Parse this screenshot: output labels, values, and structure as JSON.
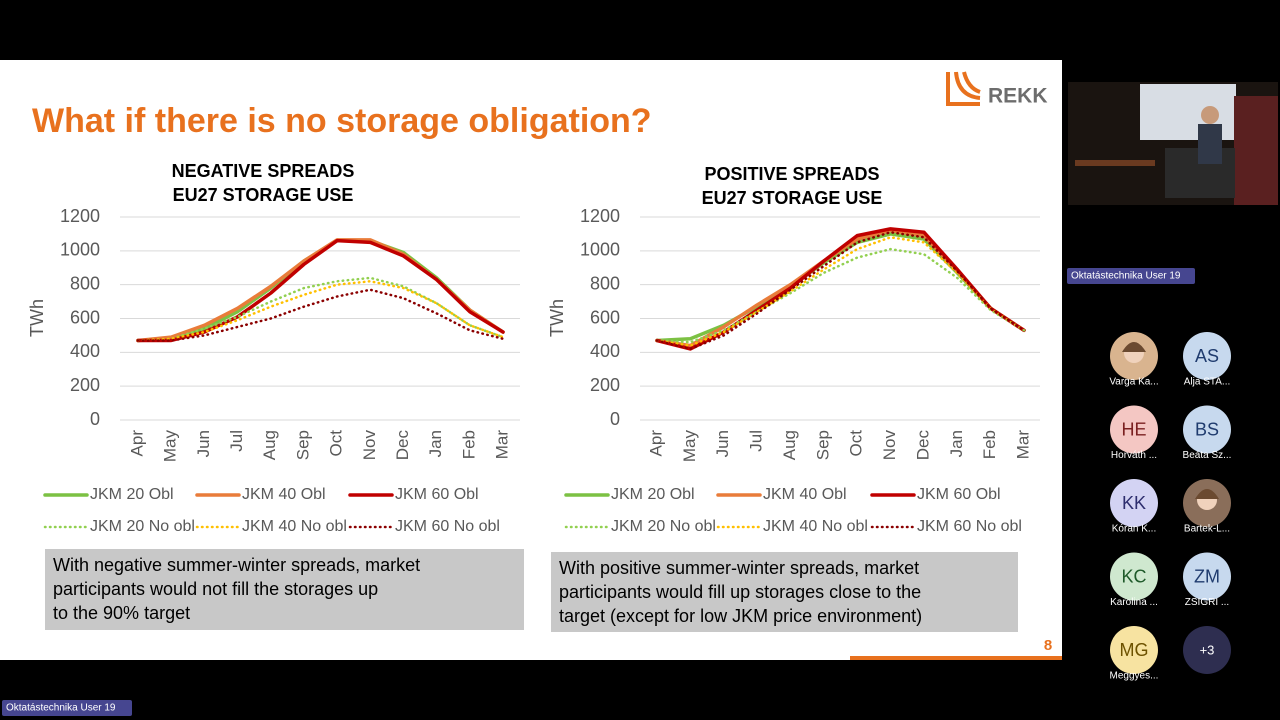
{
  "slide": {
    "title": "What if there is no storage obligation?",
    "logo": "REKK",
    "page_number": "8",
    "notes": [
      {
        "lines": [
          "With negative summer-winter spreads, market",
          "participants would not fill the storages up",
          "to the 90% target"
        ]
      },
      {
        "lines": [
          "With positive summer-winter spreads, market",
          "participants would fill up storages close to the",
          "target (except for low JKM price environment)"
        ]
      }
    ]
  },
  "chart_data": [
    {
      "type": "line",
      "title": "NEGATIVE SPREADS",
      "subtitle": "EU27 STORAGE USE",
      "y_label": "TWh",
      "categories": [
        "Apr",
        "May",
        "Jun",
        "Jul",
        "Aug",
        "Sep",
        "Oct",
        "Nov",
        "Dec",
        "Jan",
        "Feb",
        "Mar"
      ],
      "ylim": [
        0,
        1200
      ],
      "yticks": [
        0,
        200,
        400,
        600,
        800,
        1000,
        1200
      ],
      "grid": true,
      "legend": "bottom",
      "series": [
        {
          "name": "JKM 20 Obl",
          "color": "#7cc143",
          "style": "solid",
          "values": [
            470,
            480,
            540,
            640,
            780,
            940,
            1060,
            1060,
            990,
            840,
            650,
            520
          ]
        },
        {
          "name": "JKM 40 Obl",
          "color": "#e97c3a",
          "style": "solid",
          "values": [
            470,
            490,
            560,
            660,
            790,
            940,
            1065,
            1065,
            980,
            830,
            650,
            520
          ]
        },
        {
          "name": "JKM 60 Obl",
          "color": "#c00000",
          "style": "solid",
          "values": [
            470,
            470,
            520,
            610,
            750,
            920,
            1060,
            1050,
            970,
            830,
            640,
            520
          ]
        },
        {
          "name": "JKM 20 No obl",
          "color": "#92d050",
          "style": "dotted",
          "values": [
            470,
            480,
            540,
            610,
            700,
            780,
            820,
            840,
            790,
            690,
            560,
            490
          ]
        },
        {
          "name": "JKM 40 No obl",
          "color": "#ffc000",
          "style": "dotted",
          "values": [
            470,
            480,
            520,
            590,
            670,
            740,
            800,
            820,
            780,
            690,
            560,
            490
          ]
        },
        {
          "name": "JKM 60 No obl",
          "color": "#8b0000",
          "style": "dotted",
          "values": [
            470,
            470,
            500,
            550,
            600,
            670,
            730,
            770,
            720,
            630,
            530,
            480
          ]
        }
      ]
    },
    {
      "type": "line",
      "title": "POSITIVE SPREADS",
      "subtitle": "EU27 STORAGE USE",
      "y_label": "TWh",
      "categories": [
        "Apr",
        "May",
        "Jun",
        "Jul",
        "Aug",
        "Sep",
        "Oct",
        "Nov",
        "Dec",
        "Jan",
        "Feb",
        "Mar"
      ],
      "ylim": [
        0,
        1200
      ],
      "yticks": [
        0,
        200,
        400,
        600,
        800,
        1000,
        1200
      ],
      "grid": true,
      "legend": "bottom",
      "series": [
        {
          "name": "JKM 20 Obl",
          "color": "#7cc143",
          "style": "solid",
          "values": [
            470,
            480,
            560,
            670,
            790,
            930,
            1050,
            1100,
            1070,
            870,
            660,
            530
          ]
        },
        {
          "name": "JKM 40 Obl",
          "color": "#e97c3a",
          "style": "solid",
          "values": [
            470,
            440,
            550,
            680,
            800,
            940,
            1070,
            1120,
            1090,
            880,
            660,
            530
          ]
        },
        {
          "name": "JKM 60 Obl",
          "color": "#c00000",
          "style": "solid",
          "values": [
            470,
            420,
            520,
            650,
            780,
            940,
            1090,
            1130,
            1110,
            890,
            660,
            530
          ]
        },
        {
          "name": "JKM 20 No obl",
          "color": "#92d050",
          "style": "dotted",
          "values": [
            470,
            460,
            530,
            640,
            750,
            870,
            960,
            1010,
            980,
            840,
            650,
            530
          ]
        },
        {
          "name": "JKM 40 No obl",
          "color": "#ffc000",
          "style": "dotted",
          "values": [
            470,
            440,
            520,
            640,
            760,
            890,
            1010,
            1080,
            1050,
            870,
            660,
            530
          ]
        },
        {
          "name": "JKM 60 No obl",
          "color": "#8b0000",
          "style": "dotted",
          "values": [
            470,
            420,
            500,
            630,
            770,
            910,
            1050,
            1110,
            1080,
            880,
            660,
            530
          ]
        }
      ]
    }
  ],
  "speaker_label": "Oktatástechnika User 19",
  "presenter_label": "Oktatástechnika User 19",
  "participants": [
    {
      "name": "Varga Ka...",
      "photo": true,
      "color": "#d9b48f"
    },
    {
      "initials": "AS",
      "name": "Alja STA...",
      "color": "#c7d9ee",
      "text_color": "#1f3b6e"
    },
    {
      "initials": "HE",
      "name": "Horváth ...",
      "color": "#f4c7c3",
      "text_color": "#7a2020"
    },
    {
      "initials": "BS",
      "name": "Beáta Sz...",
      "color": "#c7d9ee",
      "text_color": "#1f3b6e"
    },
    {
      "initials": "KK",
      "name": "Kóran K...",
      "color": "#d3d3f3",
      "text_color": "#2e2e6e"
    },
    {
      "name": "Bartek-L...",
      "photo": true,
      "color": "#8a6e5a"
    },
    {
      "initials": "KC",
      "name": "Karolina ...",
      "color": "#cfe8cf",
      "text_color": "#1f5a2a"
    },
    {
      "initials": "ZM",
      "name": "ZSIGRI ...",
      "color": "#c7d9ee",
      "text_color": "#1f3b6e"
    },
    {
      "initials": "MG",
      "name": "Meggyes...",
      "color": "#f7e3a1",
      "text_color": "#6d5200"
    },
    {
      "initials": "+3",
      "color": "#2e2e50",
      "text_color": "#ffffff"
    }
  ]
}
